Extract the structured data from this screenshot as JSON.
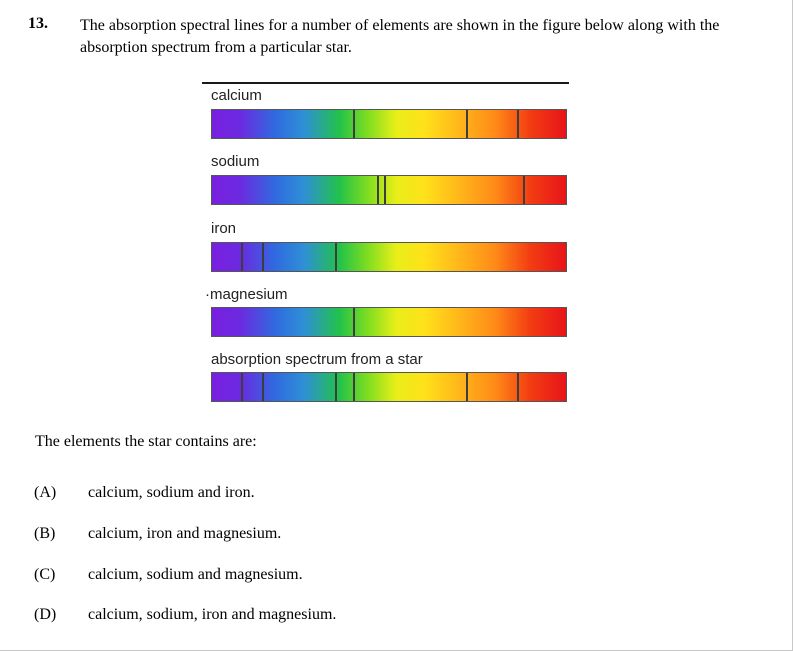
{
  "question": {
    "number": "13.",
    "text": "The absorption spectral lines for a number of elements are shown in the figure below along with the absorption spectrum from a particular star.",
    "stem": "The elements the star contains are:"
  },
  "figure": {
    "spectra": [
      {
        "label": "calcium",
        "line_positions_fraction": [
          0.4,
          0.72,
          0.865
        ]
      },
      {
        "label": "sodium",
        "line_positions_fraction": [
          0.47,
          0.49,
          0.88
        ]
      },
      {
        "label": "iron",
        "line_positions_fraction": [
          0.085,
          0.145,
          0.35
        ]
      },
      {
        "label": "·magnesium",
        "line_positions_fraction": [
          0.4
        ]
      },
      {
        "label": "absorption spectrum from a star",
        "line_positions_fraction": [
          0.085,
          0.145,
          0.35,
          0.4,
          0.72,
          0.865
        ]
      }
    ]
  },
  "options": [
    {
      "letter": "(A)",
      "text": "calcium, sodium and iron."
    },
    {
      "letter": "(B)",
      "text": "calcium, iron and magnesium."
    },
    {
      "letter": "(C)",
      "text": "calcium, sodium and magnesium."
    },
    {
      "letter": "(D)",
      "text": "calcium, sodium, iron and magnesium."
    }
  ]
}
